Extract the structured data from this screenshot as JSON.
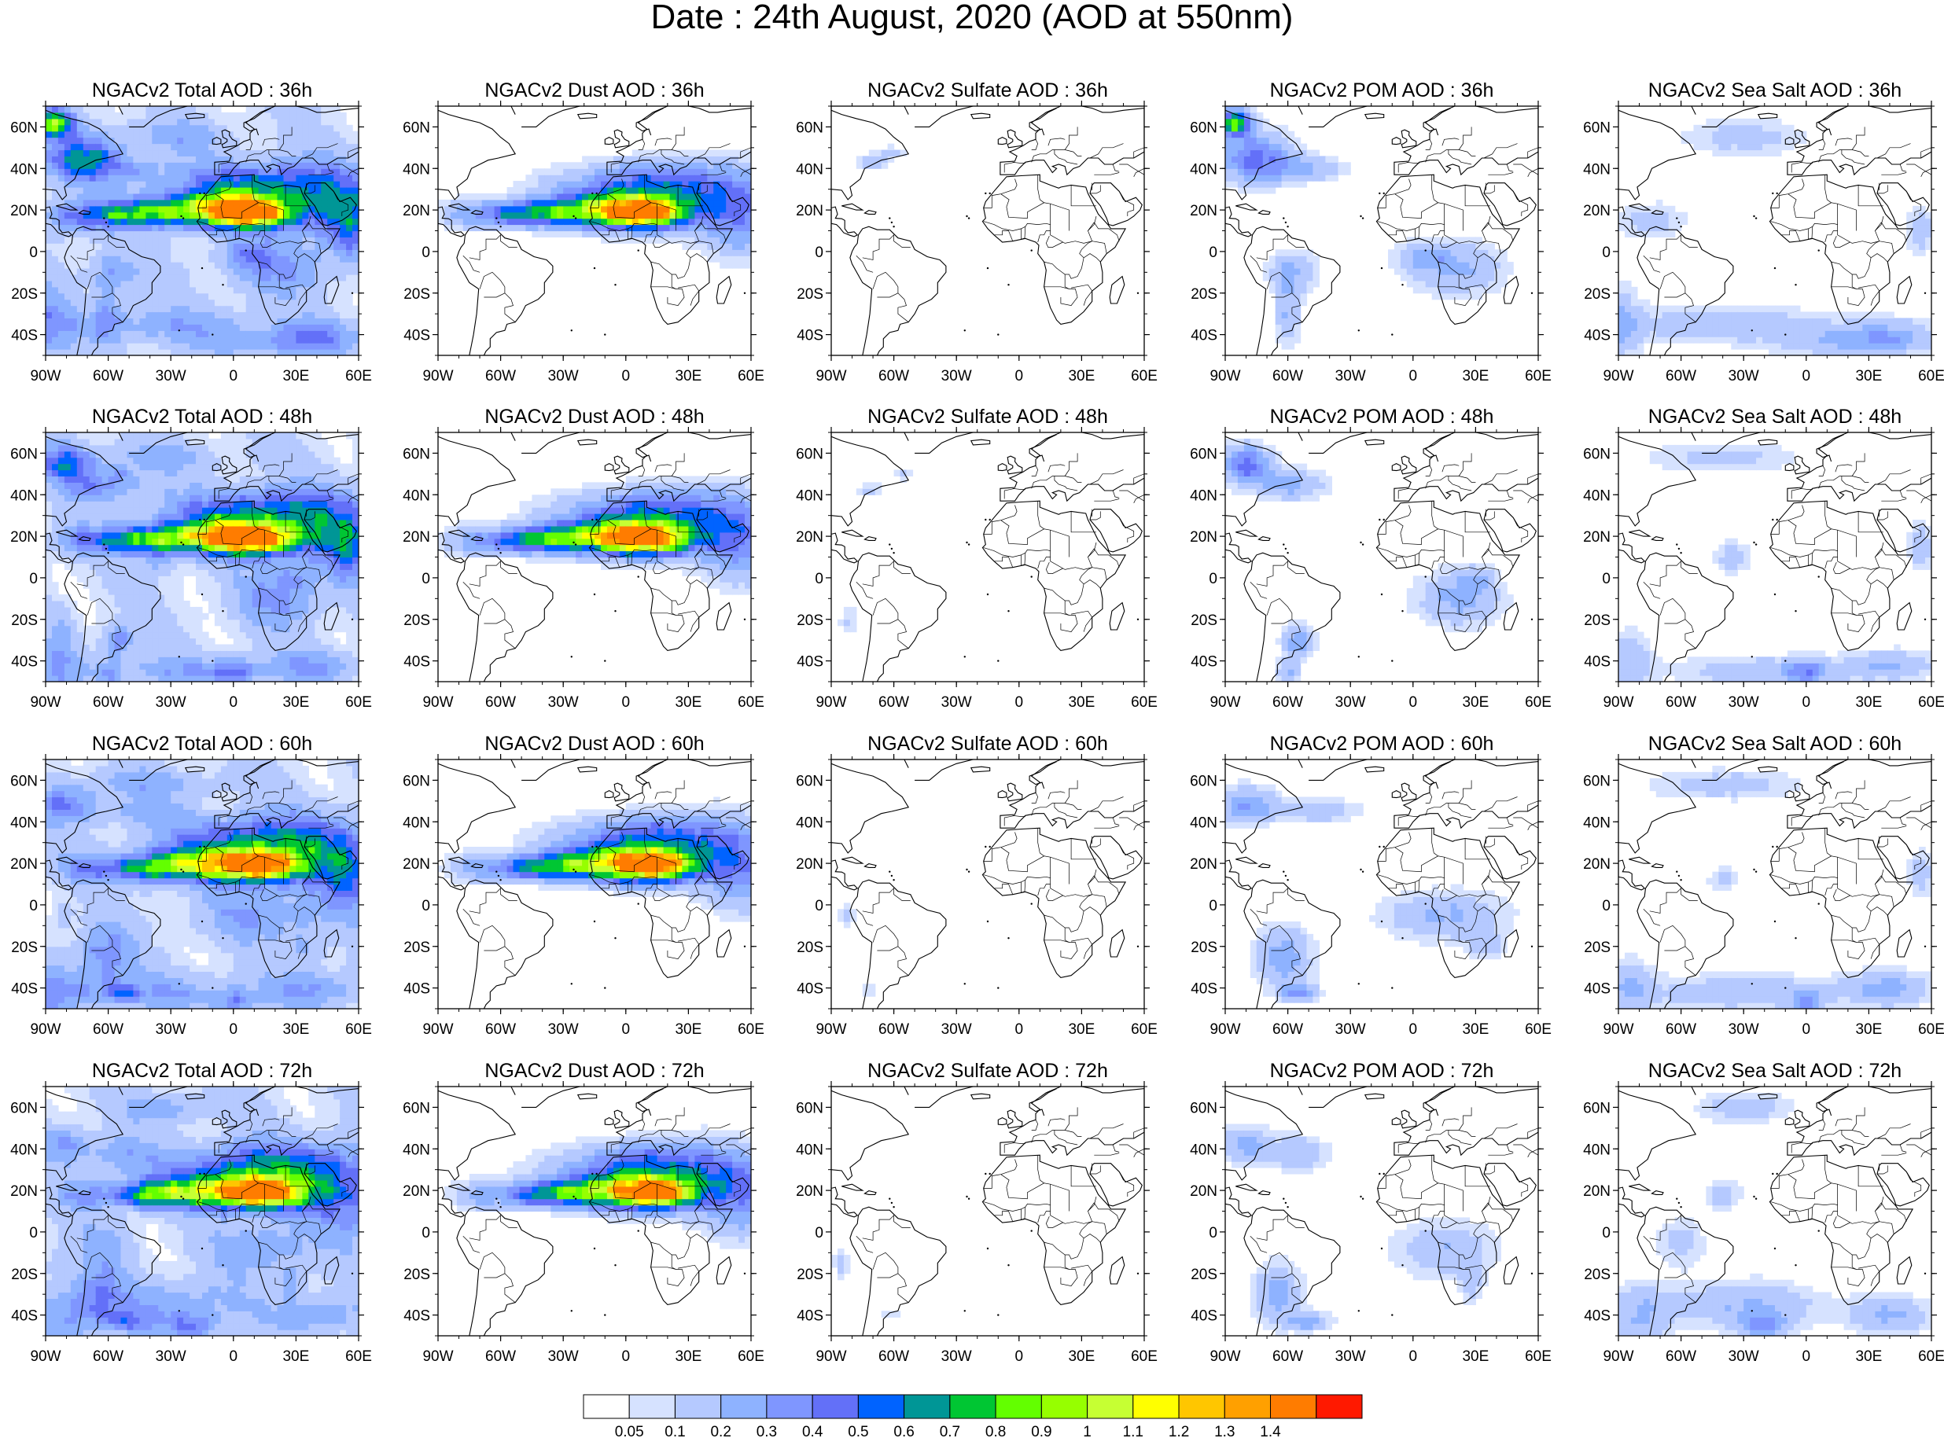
{
  "figure_title": "Date : 24th August, 2020 (AOD at 550nm)",
  "panels": [
    {
      "title": "NGACv2 Total AOD : 36h",
      "species": "total",
      "row": 0,
      "col": 0
    },
    {
      "title": "NGACv2 Dust AOD : 36h",
      "species": "dust",
      "row": 0,
      "col": 1
    },
    {
      "title": "NGACv2 Sulfate AOD : 36h",
      "species": "sulfate",
      "row": 0,
      "col": 2
    },
    {
      "title": "NGACv2 POM AOD : 36h",
      "species": "pom",
      "row": 0,
      "col": 3
    },
    {
      "title": "NGACv2 Sea Salt AOD : 36h",
      "species": "seasalt",
      "row": 0,
      "col": 4
    },
    {
      "title": "NGACv2 Total AOD : 48h",
      "species": "total",
      "row": 1,
      "col": 0
    },
    {
      "title": "NGACv2 Dust AOD : 48h",
      "species": "dust",
      "row": 1,
      "col": 1
    },
    {
      "title": "NGACv2 Sulfate AOD : 48h",
      "species": "sulfate",
      "row": 1,
      "col": 2
    },
    {
      "title": "NGACv2 POM AOD : 48h",
      "species": "pom",
      "row": 1,
      "col": 3
    },
    {
      "title": "NGACv2 Sea Salt AOD : 48h",
      "species": "seasalt",
      "row": 1,
      "col": 4
    },
    {
      "title": "NGACv2 Total AOD : 60h",
      "species": "total",
      "row": 2,
      "col": 0
    },
    {
      "title": "NGACv2 Dust AOD : 60h",
      "species": "dust",
      "row": 2,
      "col": 1
    },
    {
      "title": "NGACv2 Sulfate AOD : 60h",
      "species": "sulfate",
      "row": 2,
      "col": 2
    },
    {
      "title": "NGACv2 POM AOD : 60h",
      "species": "pom",
      "row": 2,
      "col": 3
    },
    {
      "title": "NGACv2 Sea Salt AOD : 60h",
      "species": "seasalt",
      "row": 2,
      "col": 4
    },
    {
      "title": "NGACv2 Total AOD : 72h",
      "species": "total",
      "row": 3,
      "col": 0
    },
    {
      "title": "NGACv2 Dust AOD : 72h",
      "species": "dust",
      "row": 3,
      "col": 1
    },
    {
      "title": "NGACv2 Sulfate AOD : 72h",
      "species": "sulfate",
      "row": 3,
      "col": 2
    },
    {
      "title": "NGACv2 POM AOD : 72h",
      "species": "pom",
      "row": 3,
      "col": 3
    },
    {
      "title": "NGACv2 Sea Salt  AOD : 72h",
      "species": "seasalt",
      "row": 3,
      "col": 4
    }
  ],
  "lat_ticks": [
    "60N",
    "40N",
    "20N",
    "0",
    "20S",
    "40S"
  ],
  "lon_ticks": [
    "90W",
    "60W",
    "30W",
    "0",
    "30E",
    "60E"
  ],
  "map_extent": {
    "lon": [
      -90,
      60
    ],
    "lat": [
      -50,
      70
    ]
  },
  "colorbar": {
    "labels": [
      "0.05",
      "0.1",
      "0.2",
      "0.3",
      "0.4",
      "0.5",
      "0.6",
      "0.7",
      "0.8",
      "0.9",
      "1",
      "1.1",
      "1.2",
      "1.3",
      "1.4"
    ],
    "colors": [
      "#ffffff",
      "#d6e2ff",
      "#b5c9ff",
      "#8eb2ff",
      "#7f96ff",
      "#6370f8",
      "#0063ff",
      "#009696",
      "#00c633",
      "#63ff00",
      "#96ff00",
      "#c6ff33",
      "#ffff00",
      "#ffc600",
      "#ffa000",
      "#ff7c00",
      "#ff1900"
    ]
  }
}
